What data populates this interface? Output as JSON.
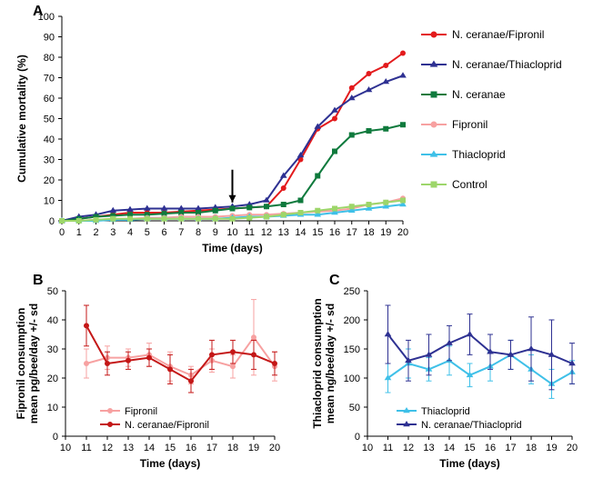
{
  "panelA": {
    "label": "A",
    "type": "line",
    "xlabel": "Time (days)",
    "ylabel": "Cumulative mortality (%)",
    "title_fontsize": 12,
    "label_fontsize": 12,
    "tick_fontsize": 11,
    "xlim": [
      0,
      20
    ],
    "ylim": [
      0,
      100
    ],
    "xtick_step": 1,
    "ytick_step": 10,
    "background_color": "#ffffff",
    "grid": false,
    "axis_color": "#000000",
    "marker_size": 5,
    "line_width": 2,
    "arrow": {
      "x": 10,
      "y_from": 25,
      "y_to": 9,
      "color": "#000000"
    },
    "x": [
      0,
      1,
      2,
      3,
      4,
      5,
      6,
      7,
      8,
      9,
      10,
      11,
      12,
      13,
      14,
      15,
      16,
      17,
      18,
      19,
      20
    ],
    "series": [
      {
        "name": "N. ceranae/Fipronil",
        "color": "#e31a1c",
        "marker": "circle",
        "y": [
          0,
          1,
          2,
          3,
          4,
          4,
          4,
          4.5,
          5,
          5.5,
          6,
          6.5,
          7,
          16,
          30,
          45,
          50,
          65,
          72,
          76,
          82
        ]
      },
      {
        "name": "N. ceranae/Thiacloprid",
        "color": "#2e3192",
        "marker": "triangle",
        "y": [
          0,
          2,
          3,
          5,
          5.5,
          6,
          6,
          6,
          6,
          6.5,
          7,
          8,
          10,
          22,
          32,
          46,
          54,
          60,
          64,
          68,
          71
        ]
      },
      {
        "name": "N. ceranae",
        "color": "#0f7a3d",
        "marker": "square",
        "y": [
          0,
          1,
          2,
          2.5,
          3,
          3,
          3.5,
          4,
          4,
          5,
          6,
          6.5,
          7,
          8,
          10,
          22,
          34,
          42,
          44,
          45,
          47
        ]
      },
      {
        "name": "Fipronil",
        "color": "#f7a1a1",
        "marker": "circle",
        "y": [
          0,
          0,
          0.5,
          1,
          1,
          1.5,
          1.5,
          2,
          2,
          2,
          2.5,
          3,
          3,
          3.5,
          4,
          4.5,
          5,
          6,
          8,
          9,
          11
        ]
      },
      {
        "name": "Thiacloprid",
        "color": "#3fc0e8",
        "marker": "triangle",
        "y": [
          0,
          0,
          0,
          0.5,
          0.5,
          1,
          1,
          1,
          1,
          1,
          1.5,
          2,
          2,
          2.5,
          3,
          3,
          4,
          5,
          6,
          7,
          8
        ]
      },
      {
        "name": "Control",
        "color": "#9dd66a",
        "marker": "square",
        "y": [
          0,
          0,
          0.5,
          1,
          1,
          1,
          1,
          1,
          1,
          1,
          1,
          1.5,
          2,
          3,
          4,
          5,
          6,
          7,
          8,
          9,
          10
        ]
      }
    ]
  },
  "panelB": {
    "label": "B",
    "type": "line",
    "xlabel": "Time (days)",
    "ylabel": "Fipronil consumption\nmean pg/bee/day +/- sd",
    "label_fontsize": 12,
    "tick_fontsize": 11,
    "xlim": [
      10,
      20
    ],
    "ylim": [
      0,
      50
    ],
    "xtick_step": 1,
    "ytick_step": 10,
    "background_color": "#ffffff",
    "grid": false,
    "axis_color": "#000000",
    "marker_size": 5,
    "line_width": 2,
    "x": [
      11,
      12,
      13,
      14,
      15,
      16,
      17,
      18,
      19,
      20
    ],
    "series": [
      {
        "name": "Fipronil",
        "color": "#f7a1a1",
        "marker": "circle",
        "y": [
          25,
          27,
          27,
          28,
          24,
          21,
          26,
          24,
          34,
          24
        ],
        "err": [
          5,
          4,
          3,
          4,
          5,
          3,
          4,
          4,
          13,
          5
        ]
      },
      {
        "name": "N. ceranae/Fipronil",
        "color": "#c41717",
        "marker": "circle",
        "y": [
          38,
          25,
          26,
          27,
          23,
          19,
          28,
          29,
          28,
          25
        ],
        "err": [
          7,
          4,
          3,
          3,
          5,
          4,
          5,
          4,
          5,
          4
        ]
      }
    ]
  },
  "panelC": {
    "label": "C",
    "type": "line",
    "xlabel": "Time (days)",
    "ylabel": "Thiacloprid consumption\nmean ng/bee/day +/- sd",
    "label_fontsize": 12,
    "tick_fontsize": 11,
    "xlim": [
      10,
      20
    ],
    "ylim": [
      0,
      250
    ],
    "xtick_step": 1,
    "ytick_step": 50,
    "background_color": "#ffffff",
    "grid": false,
    "axis_color": "#000000",
    "marker_size": 5,
    "line_width": 2,
    "x": [
      11,
      12,
      13,
      14,
      15,
      16,
      17,
      18,
      19,
      20
    ],
    "series": [
      {
        "name": "Thiacloprid",
        "color": "#3fc0e8",
        "marker": "triangle",
        "y": [
          100,
          125,
          115,
          130,
          105,
          120,
          140,
          115,
          90,
          110
        ],
        "err": [
          25,
          25,
          20,
          25,
          20,
          25,
          25,
          25,
          25,
          20
        ]
      },
      {
        "name": "N. ceranae/Thiacloprid",
        "color": "#2e3192",
        "marker": "triangle",
        "y": [
          175,
          130,
          140,
          160,
          175,
          145,
          140,
          150,
          140,
          125
        ],
        "err": [
          50,
          35,
          35,
          30,
          35,
          30,
          25,
          55,
          60,
          35
        ]
      }
    ]
  }
}
